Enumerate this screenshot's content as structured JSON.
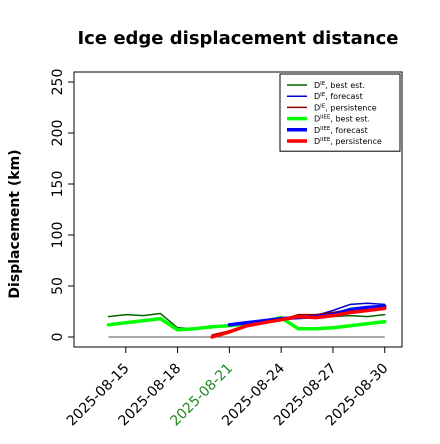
{
  "chart_data": {
    "type": "line",
    "title": "Ice edge displacement distance",
    "xlabel": "",
    "ylabel": "Displacement (km)",
    "ylim": [
      0,
      250
    ],
    "xlim": [
      "2025-08-12",
      "2025-08-31"
    ],
    "x_tick_labels": [
      "2025-08-15",
      "2025-08-18",
      "2025-08-21",
      "2025-08-24",
      "2025-08-27",
      "2025-08-30"
    ],
    "highlighted_tick": "2025-08-21",
    "highlight_color": "#228b22",
    "y_ticks": [
      0,
      50,
      100,
      150,
      200,
      250
    ],
    "grid": false,
    "legend_position": "top-right",
    "series": [
      {
        "name": "D^IE, best est.",
        "legend_main": "D",
        "legend_sup": "IE",
        "legend_rest": ", best est.",
        "color": "#006400",
        "width": 1.5,
        "x": [
          "2025-08-14",
          "2025-08-15",
          "2025-08-16",
          "2025-08-17",
          "2025-08-18",
          "2025-08-19",
          "2025-08-20",
          "2025-08-21",
          "2025-08-22",
          "2025-08-23",
          "2025-08-24",
          "2025-08-25",
          "2025-08-26",
          "2025-08-27",
          "2025-08-28",
          "2025-08-29",
          "2025-08-30"
        ],
        "values": [
          20,
          22,
          21,
          23,
          9,
          8,
          10,
          11,
          12,
          14,
          18,
          20,
          21,
          20,
          21,
          20,
          22
        ]
      },
      {
        "name": "D^IE, forecast",
        "legend_main": "D",
        "legend_sup": "IE",
        "legend_rest": ", forecast",
        "color": "#0000cd",
        "width": 1.5,
        "x": [
          "2025-08-21",
          "2025-08-22",
          "2025-08-23",
          "2025-08-24",
          "2025-08-25",
          "2025-08-26",
          "2025-08-27",
          "2025-08-28",
          "2025-08-29",
          "2025-08-30"
        ],
        "values": [
          12,
          14,
          16,
          18,
          20,
          21,
          26,
          32,
          33,
          32
        ]
      },
      {
        "name": "D^IE, persistence",
        "legend_main": "D",
        "legend_sup": "IE",
        "legend_rest": ", persistence",
        "color": "#8b0000",
        "width": 1.5,
        "x": [
          "2025-08-20",
          "2025-08-21",
          "2025-08-22",
          "2025-08-23",
          "2025-08-24",
          "2025-08-25",
          "2025-08-26",
          "2025-08-27",
          "2025-08-28",
          "2025-08-29",
          "2025-08-30"
        ],
        "values": [
          2,
          6,
          12,
          14,
          17,
          22,
          22,
          24,
          27,
          29,
          30
        ]
      },
      {
        "name": "D^IIEE, best est.",
        "legend_main": "D",
        "legend_sup": "IIEE",
        "legend_rest": ", best est.",
        "color": "#00ff00",
        "width": 3.5,
        "x": [
          "2025-08-14",
          "2025-08-15",
          "2025-08-16",
          "2025-08-17",
          "2025-08-18",
          "2025-08-19",
          "2025-08-20",
          "2025-08-21",
          "2025-08-22",
          "2025-08-23",
          "2025-08-24",
          "2025-08-25",
          "2025-08-26",
          "2025-08-27",
          "2025-08-28",
          "2025-08-29",
          "2025-08-30"
        ],
        "values": [
          12,
          14,
          16,
          18,
          7,
          8,
          10,
          11,
          13,
          15,
          19,
          8,
          8,
          9,
          11,
          13,
          15
        ]
      },
      {
        "name": "D^IIEE, forecast",
        "legend_main": "D",
        "legend_sup": "IIEE",
        "legend_rest": ", forecast",
        "color": "#0000ff",
        "width": 3.5,
        "x": [
          "2025-08-21",
          "2025-08-22",
          "2025-08-23",
          "2025-08-24",
          "2025-08-25",
          "2025-08-26",
          "2025-08-27",
          "2025-08-28",
          "2025-08-29",
          "2025-08-30"
        ],
        "values": [
          12,
          14,
          16,
          18,
          19,
          20,
          22,
          27,
          29,
          30
        ]
      },
      {
        "name": "D^IIEE, persistence",
        "legend_main": "D",
        "legend_sup": "IIEE",
        "legend_rest": ", persistence",
        "color": "#ff0000",
        "width": 3.5,
        "x": [
          "2025-08-20",
          "2025-08-21",
          "2025-08-22",
          "2025-08-23",
          "2025-08-24",
          "2025-08-25",
          "2025-08-26",
          "2025-08-27",
          "2025-08-28",
          "2025-08-29",
          "2025-08-30"
        ],
        "values": [
          0,
          5,
          11,
          14,
          17,
          20,
          19,
          21,
          24,
          26,
          28
        ]
      }
    ],
    "reference_line": {
      "color": "#555555",
      "x": [
        "2025-08-14",
        "2025-08-30"
      ],
      "values": [
        0,
        0
      ]
    }
  }
}
